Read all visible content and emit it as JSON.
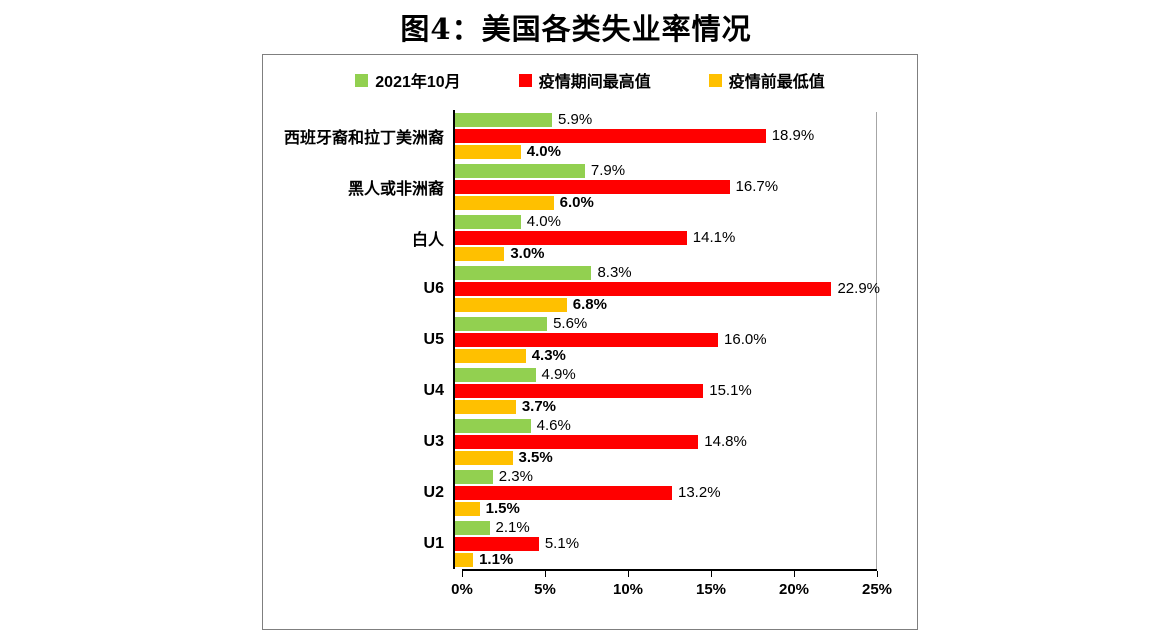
{
  "title": "图4：美国各类失业率情况",
  "legend": [
    {
      "label": "2021年10月",
      "color": "#92D050"
    },
    {
      "label": "疫情期间最高值",
      "color": "#FF0000"
    },
    {
      "label": "疫情前最低值",
      "color": "#FFC000"
    }
  ],
  "chart_data": {
    "type": "bar",
    "orientation": "horizontal",
    "title": "图4：美国各类失业率情况",
    "categories": [
      "西班牙裔和拉丁美洲裔",
      "黑人或非洲裔",
      "白人",
      "U6",
      "U5",
      "U4",
      "U3",
      "U2",
      "U1"
    ],
    "series": [
      {
        "name": "2021年10月",
        "color": "#92D050",
        "label_bold": false,
        "values": [
          5.9,
          7.9,
          4.0,
          8.3,
          5.6,
          4.9,
          4.6,
          2.3,
          2.1
        ]
      },
      {
        "name": "疫情期间最高值",
        "color": "#FF0000",
        "label_bold": false,
        "values": [
          18.9,
          16.7,
          14.1,
          22.9,
          16.0,
          15.1,
          14.8,
          13.2,
          5.1
        ]
      },
      {
        "name": "疫情前最低值",
        "color": "#FFC000",
        "label_bold": true,
        "values": [
          4.0,
          6.0,
          3.0,
          6.8,
          4.3,
          3.7,
          3.5,
          1.5,
          1.1
        ]
      }
    ],
    "xlim": [
      0,
      25
    ],
    "x_ticks": [
      "0%",
      "5%",
      "10%",
      "15%",
      "20%",
      "25%"
    ],
    "value_suffix": "%",
    "grid": "off",
    "legend_position": "top"
  }
}
